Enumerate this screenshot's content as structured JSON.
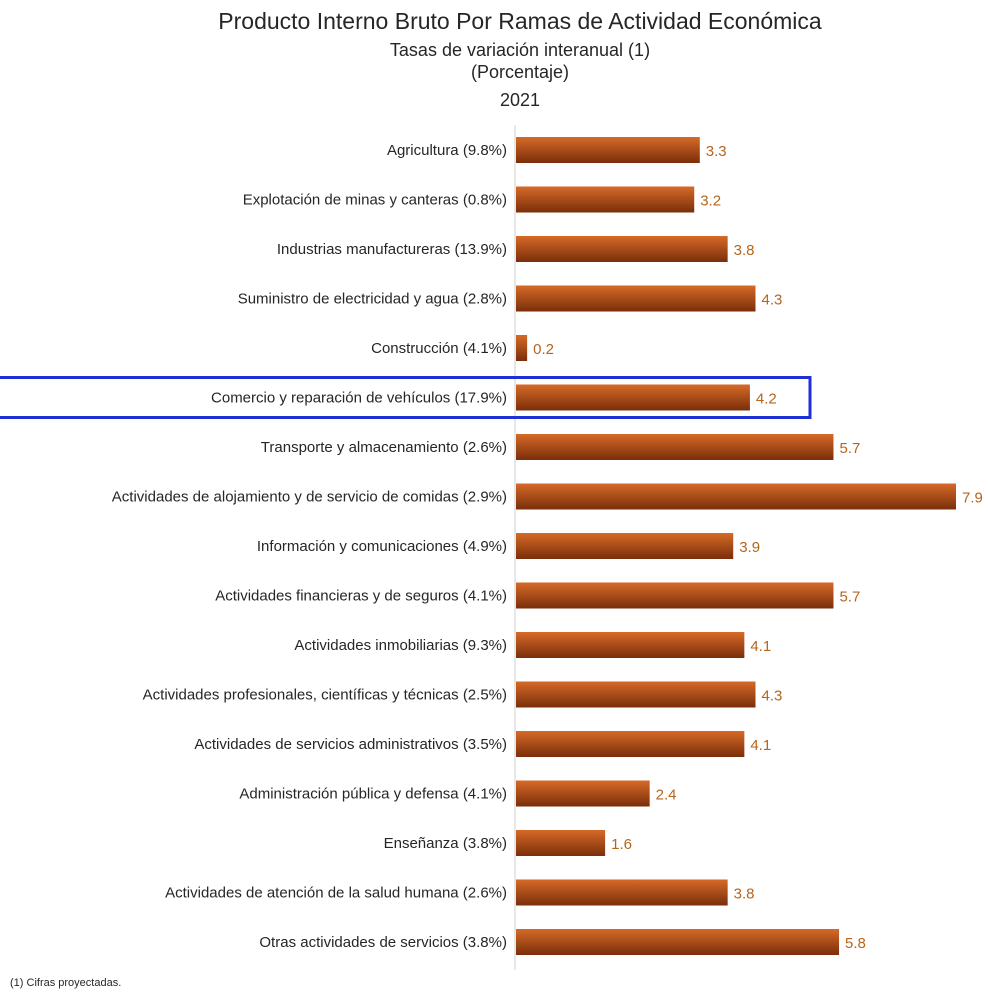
{
  "chart_data": {
    "type": "bar",
    "orientation": "horizontal",
    "title": "Producto Interno Bruto Por Ramas de Actividad Económica",
    "subtitle_lines": [
      "Tasas de variación interanual (1)",
      "(Porcentaje)",
      "2021"
    ],
    "categories": [
      "Agricultura (9.8%)",
      "Explotación de minas y canteras (0.8%)",
      "Industrias manufactureras (13.9%)",
      "Suministro de electricidad y agua  (2.8%)",
      "Construcción (4.1%)",
      "Comercio y reparación de vehículos  (17.9%)",
      "Transporte y almacenamiento (2.6%)",
      "Actividades de alojamiento y de servicio de comidas (2.9%)",
      "Información y comunicaciones (4.9%)",
      "Actividades financieras y de seguros (4.1%)",
      "Actividades inmobiliarias (9.3%)",
      "Actividades profesionales, científicas y técnicas (2.5%)",
      "Actividades de servicios administrativos  (3.5%)",
      "Administración pública y defensa (4.1%)",
      "Enseñanza (3.8%)",
      "Actividades de atención de la salud humana (2.6%)",
      "Otras actividades de servicios (3.8%)"
    ],
    "values": [
      3.3,
      3.2,
      3.8,
      4.3,
      0.2,
      4.2,
      5.7,
      7.9,
      3.9,
      5.7,
      4.1,
      4.3,
      4.1,
      2.4,
      1.6,
      3.8,
      5.8
    ],
    "value_labels": [
      "3.3",
      "3.2",
      "3.8",
      "4.3",
      "0.2",
      "4.2",
      "5.7",
      "7.9",
      "3.9",
      "5.7",
      "4.1",
      "4.3",
      "4.1",
      "2.4",
      "1.6",
      "3.8",
      "5.8"
    ],
    "xlim": [
      0,
      8.2
    ],
    "highlighted_category": "Comercio y reparación de vehículos  (17.9%)",
    "grid": false,
    "bar_color_dark": "#7a2e0a",
    "bar_color_light": "#d66a28",
    "value_label_color": "#b5651d",
    "highlight_color": "#1f2fd6"
  },
  "footnote": "(1) Cifras proyectadas."
}
